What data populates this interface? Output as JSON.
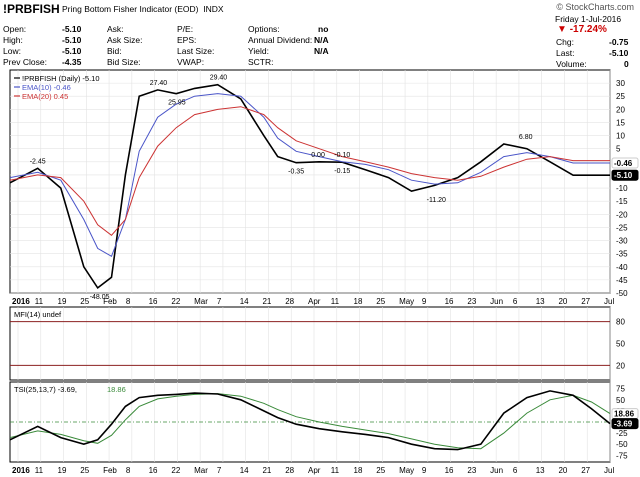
{
  "header": {
    "symbol": "!PRBFISH",
    "name": "Pring Bottom Fisher Indicator (EOD)",
    "exchange": "INDX",
    "watermark": "© StockCharts.com",
    "date": "Friday 1-Jul-2016",
    "change_pct": "-17.24%",
    "fields": [
      {
        "label": "Open:",
        "value": "-5.10"
      },
      {
        "label": "High:",
        "value": "-5.10"
      },
      {
        "label": "Low:",
        "value": "-5.10"
      },
      {
        "label": "Prev Close:",
        "value": "-4.35"
      },
      {
        "label": "Ask:",
        "value": ""
      },
      {
        "label": "Ask Size:",
        "value": ""
      },
      {
        "label": "Bid:",
        "value": ""
      },
      {
        "label": "Bid Size:",
        "value": ""
      },
      {
        "label": "P/E:",
        "value": ""
      },
      {
        "label": "EPS:",
        "value": ""
      },
      {
        "label": "Last Size:",
        "value": ""
      },
      {
        "label": "VWAP:",
        "value": ""
      },
      {
        "label": "Options:",
        "value": "no"
      },
      {
        "label": "Annual Dividend:",
        "value": "N/A"
      },
      {
        "label": "Yield:",
        "value": "N/A"
      },
      {
        "label": "SCTR:",
        "value": ""
      },
      {
        "label": "Chg:",
        "value": "-0.75"
      },
      {
        "label": "Last:",
        "value": "-5.10"
      },
      {
        "label": "Volume:",
        "value": "0"
      }
    ]
  },
  "colors": {
    "price": "#000000",
    "ema10": "#4a55c8",
    "ema20": "#cc3333",
    "tsi": "#000000",
    "tsi_signal": "#3a8a3a",
    "mfi_bands": "#8b2020",
    "pos_badge": "#cccccc",
    "neg_badge": "#000000"
  },
  "chart_data": [
    {
      "type": "line",
      "panel": "price",
      "legend": [
        "!PRBFISH (Daily) -5.10",
        "EMA(10) -0.46",
        "EMA(20) 0.45"
      ],
      "ylim": [
        -50,
        35
      ],
      "yticks": [
        30,
        25,
        20,
        15,
        10,
        5,
        0,
        -5,
        -10,
        -15,
        -20,
        -25,
        -30,
        -35,
        -40,
        -45,
        -50
      ],
      "x_tick_labels": [
        "2016",
        "11",
        "19",
        "25",
        "Feb",
        "8",
        "16",
        "22",
        "Mar",
        "7",
        "14",
        "21",
        "28",
        "Apr",
        "11",
        "18",
        "25",
        "May",
        "9",
        "16",
        "23",
        "Jun",
        "6",
        "13",
        "20",
        "27",
        "Jul"
      ],
      "x": [
        0,
        6,
        11,
        16,
        19,
        22,
        25,
        28,
        32,
        36,
        40,
        45,
        50,
        55,
        58,
        62,
        67,
        72,
        77,
        82,
        87,
        92,
        97,
        102,
        107,
        112,
        117,
        122,
        126,
        130
      ],
      "series": [
        {
          "name": "!PRBFISH (Daily)",
          "values": [
            -8,
            -2.45,
            -10,
            -40,
            -48.05,
            -44,
            -5,
            25,
            27.4,
            25.95,
            28,
            29.4,
            24,
            10,
            2,
            -0.35,
            0,
            -0.15,
            -3,
            -6,
            -11.2,
            -9,
            -6,
            0,
            6.8,
            5,
            0,
            -5.1,
            -5.1,
            -5.1
          ]
        },
        {
          "name": "EMA(10)",
          "values": [
            -6,
            -4,
            -7,
            -22,
            -33,
            -36,
            -22,
            4,
            17,
            22,
            25,
            26,
            25,
            17,
            9,
            4,
            2,
            0,
            -1,
            -3,
            -7,
            -8.5,
            -8,
            -4,
            2,
            3.5,
            2,
            -0.46,
            -0.46,
            -0.46
          ]
        },
        {
          "name": "EMA(20)",
          "values": [
            -7,
            -5,
            -6,
            -15,
            -24,
            -28,
            -22,
            -6,
            6,
            13,
            18,
            20,
            21,
            18,
            13,
            8,
            5,
            2,
            0,
            -2,
            -4.5,
            -6,
            -7,
            -5.5,
            -2,
            1,
            2,
            0.45,
            0.45,
            0.45
          ]
        }
      ],
      "annotations": [
        {
          "text": "-2.45",
          "x": 6,
          "y": -2.45,
          "pos": "above"
        },
        {
          "text": "-48.05",
          "x": 19,
          "y": -48.05,
          "pos": "below"
        },
        {
          "text": "27.40",
          "x": 32,
          "y": 27.4,
          "pos": "above"
        },
        {
          "text": "25.95",
          "x": 36,
          "y": 25.95,
          "pos": "below"
        },
        {
          "text": "29.40",
          "x": 45,
          "y": 29.4,
          "pos": "above"
        },
        {
          "text": "0.00",
          "x": 67,
          "y": 0,
          "pos": "above"
        },
        {
          "text": "-0.10",
          "x": 72,
          "y": -0.1,
          "pos": "above"
        },
        {
          "text": "-0.35",
          "x": 62,
          "y": -0.35,
          "pos": "below"
        },
        {
          "text": "-0.15",
          "x": 72,
          "y": -0.15,
          "pos": "below"
        },
        {
          "text": "-11.20",
          "x": 92,
          "y": -11.2,
          "pos": "below"
        },
        {
          "text": "6.80",
          "x": 112,
          "y": 6.8,
          "pos": "above"
        }
      ],
      "badges": [
        {
          "text": "-0.46",
          "y": -0.46,
          "style": "pos"
        },
        {
          "text": "-5.10",
          "y": -5.1,
          "style": "neg"
        }
      ]
    },
    {
      "type": "line",
      "panel": "mfi",
      "legend": [
        "MFI(14) undef"
      ],
      "ylim": [
        0,
        100
      ],
      "yticks": [
        80,
        50,
        20
      ],
      "bands": [
        80,
        20
      ]
    },
    {
      "type": "line",
      "panel": "tsi",
      "legend": [
        "TSI(25,13,7) -3.69,",
        "18.86"
      ],
      "ylim": [
        -90,
        90
      ],
      "yticks": [
        75,
        50,
        25,
        0,
        -25,
        -50,
        -75
      ],
      "x": [
        0,
        6,
        11,
        16,
        19,
        22,
        25,
        28,
        32,
        36,
        40,
        45,
        50,
        55,
        58,
        62,
        67,
        72,
        77,
        82,
        87,
        92,
        97,
        102,
        107,
        112,
        117,
        122,
        126,
        130
      ],
      "series": [
        {
          "name": "TSI",
          "values": [
            -40,
            -10,
            -35,
            -50,
            -40,
            -5,
            35,
            55,
            60,
            62,
            65,
            63,
            50,
            25,
            10,
            -5,
            -15,
            -22,
            -28,
            -35,
            -50,
            -60,
            -62,
            -50,
            20,
            55,
            70,
            60,
            30,
            -3.69
          ]
        },
        {
          "name": "Signal",
          "values": [
            -35,
            -20,
            -28,
            -42,
            -48,
            -30,
            5,
            35,
            52,
            58,
            62,
            64,
            58,
            42,
            28,
            12,
            0,
            -10,
            -18,
            -26,
            -38,
            -50,
            -58,
            -60,
            -25,
            20,
            50,
            60,
            45,
            18.86
          ]
        }
      ],
      "badges": [
        {
          "text": "18.86",
          "y": 18.86,
          "style": "pos"
        },
        {
          "text": "-3.69",
          "y": -3.69,
          "style": "neg"
        }
      ]
    }
  ]
}
